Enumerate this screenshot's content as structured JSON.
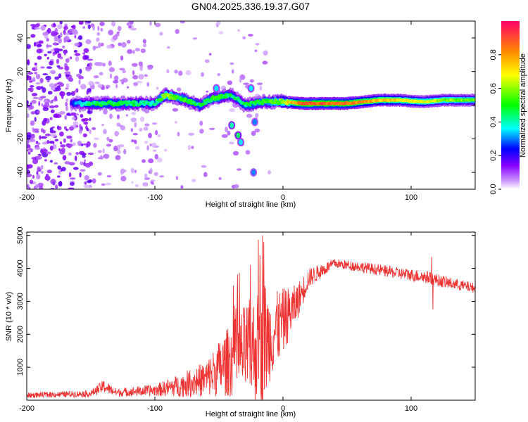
{
  "figure_title": "GN04.2025.336.19.37.G07",
  "chart_data": [
    {
      "type": "heatmap",
      "title": "GN04.2025.336.19.37.G07",
      "xlabel": "Height of straight line (km)",
      "ylabel": "Frequency (Hz)",
      "xlim": [
        -200,
        150
      ],
      "ylim": [
        -50,
        50
      ],
      "x_ticks": [
        -200,
        -100,
        0,
        100
      ],
      "y_ticks": [
        -40,
        -20,
        0,
        20,
        40
      ],
      "colorbar": {
        "label": "Normalized spectral amplitude",
        "range": [
          0,
          1
        ],
        "ticks": [
          0.0,
          0.2,
          0.4,
          0.6,
          0.8
        ],
        "tick_labels": [
          "0.0",
          "0.2",
          "0.4",
          "0.6",
          "0.8"
        ],
        "colors": [
          "#ffffff",
          "#cc99ff",
          "#8800ff",
          "#0000ff",
          "#00ffff",
          "#00ff00",
          "#ffff00",
          "#ff8800",
          "#ff0066"
        ]
      },
      "ridge": [
        {
          "x": -165,
          "y": 1,
          "amp": 0.25
        },
        {
          "x": -150,
          "y": 1,
          "amp": 0.45
        },
        {
          "x": -120,
          "y": 1,
          "amp": 0.45
        },
        {
          "x": -100,
          "y": 1,
          "amp": 0.4
        },
        {
          "x": -92,
          "y": 6,
          "amp": 0.6
        },
        {
          "x": -80,
          "y": 4,
          "amp": 0.5
        },
        {
          "x": -65,
          "y": 0,
          "amp": 0.45
        },
        {
          "x": -55,
          "y": 4,
          "amp": 0.5
        },
        {
          "x": -40,
          "y": 6,
          "amp": 0.45
        },
        {
          "x": -30,
          "y": 0,
          "amp": 0.45
        },
        {
          "x": -15,
          "y": 2,
          "amp": 0.5
        },
        {
          "x": 0,
          "y": 2,
          "amp": 0.6
        },
        {
          "x": 15,
          "y": 1,
          "amp": 0.9
        },
        {
          "x": 50,
          "y": 1,
          "amp": 0.85
        },
        {
          "x": 75,
          "y": 3,
          "amp": 0.75
        },
        {
          "x": 90,
          "y": 3,
          "amp": 0.7
        },
        {
          "x": 110,
          "y": 2,
          "amp": 0.65
        },
        {
          "x": 125,
          "y": 3,
          "amp": 0.6
        },
        {
          "x": 150,
          "y": 3,
          "amp": 0.55
        }
      ],
      "features": [
        {
          "x": -40,
          "y": -12,
          "amp": 0.4
        },
        {
          "x": -35,
          "y": -18,
          "amp": 0.45
        },
        {
          "x": -33,
          "y": -22,
          "amp": 0.35
        },
        {
          "x": -22,
          "y": -10,
          "amp": 0.3
        },
        {
          "x": -23,
          "y": -40,
          "amp": 0.3
        },
        {
          "x": -52,
          "y": 10,
          "amp": 0.35
        },
        {
          "x": -25,
          "y": 10,
          "amp": 0.35
        }
      ]
    },
    {
      "type": "line",
      "xlabel": "Height of straight line (km)",
      "ylabel": "SNR (10 * v/v)",
      "xlim": [
        -200,
        150
      ],
      "ylim": [
        0,
        5100
      ],
      "x_ticks": [
        -200,
        -100,
        0,
        100
      ],
      "y_ticks": [
        1000,
        2000,
        3000,
        4000,
        5000
      ],
      "color": "#ee3333",
      "envelope": [
        {
          "x": -200,
          "base": 150,
          "noise": 80
        },
        {
          "x": -150,
          "base": 200,
          "noise": 100
        },
        {
          "x": -140,
          "base": 420,
          "noise": 200
        },
        {
          "x": -130,
          "base": 230,
          "noise": 120
        },
        {
          "x": -100,
          "base": 300,
          "noise": 180
        },
        {
          "x": -80,
          "base": 450,
          "noise": 350
        },
        {
          "x": -60,
          "base": 650,
          "noise": 550
        },
        {
          "x": -45,
          "base": 1100,
          "noise": 1000
        },
        {
          "x": -30,
          "base": 1500,
          "noise": 1400
        },
        {
          "x": -20,
          "base": 1600,
          "noise": 1700
        },
        {
          "x": -15,
          "base": 1800,
          "noise": 2000
        },
        {
          "x": -10,
          "base": 1900,
          "noise": 1300
        },
        {
          "x": 0,
          "base": 2400,
          "noise": 1000
        },
        {
          "x": 10,
          "base": 2900,
          "noise": 600
        },
        {
          "x": 20,
          "base": 3700,
          "noise": 300
        },
        {
          "x": 40,
          "base": 4150,
          "noise": 140
        },
        {
          "x": 60,
          "base": 4050,
          "noise": 160
        },
        {
          "x": 90,
          "base": 3850,
          "noise": 180
        },
        {
          "x": 110,
          "base": 3750,
          "noise": 200
        },
        {
          "x": 130,
          "base": 3550,
          "noise": 180
        },
        {
          "x": 150,
          "base": 3400,
          "noise": 150
        }
      ],
      "spikes": [
        {
          "x": -16,
          "value": 5000
        },
        {
          "x": -15,
          "value": 4800
        },
        {
          "x": -18,
          "value": 4400
        },
        {
          "x": 116,
          "value": 4350
        },
        {
          "x": 117,
          "value": 2750
        }
      ]
    }
  ]
}
